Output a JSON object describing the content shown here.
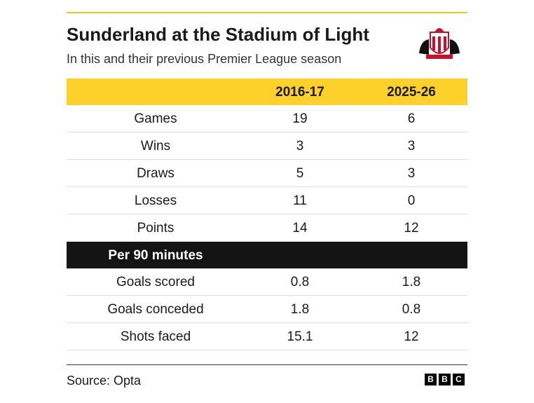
{
  "header": {
    "title": "Sunderland at the Stadium of Light",
    "subtitle": "In this and their previous Premier League season"
  },
  "table": {
    "columns": [
      "2016-17",
      "2025-26"
    ],
    "rows": [
      [
        "Games",
        19,
        6
      ],
      [
        "Wins",
        3,
        3
      ],
      [
        "Draws",
        5,
        3
      ],
      [
        "Losses",
        11,
        0
      ],
      [
        "Points",
        14,
        12
      ]
    ],
    "section": "Per 90 minutes",
    "section_rows": [
      [
        "Goals scored",
        0.8,
        1.8
      ],
      [
        "Goals conceded",
        1.8,
        0.8
      ],
      [
        "Shots faced",
        15.1,
        12
      ]
    ]
  },
  "footer": {
    "source": "Source: Opta",
    "logo": [
      "B",
      "B",
      "C"
    ]
  }
}
